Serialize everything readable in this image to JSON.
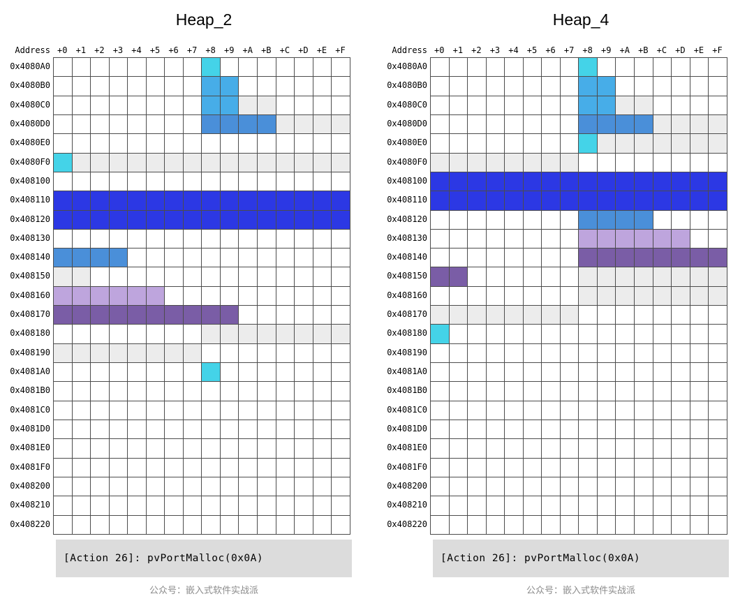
{
  "labels": {
    "address_header": "Address"
  },
  "footer_text": "公众号：嵌入式软件实战派",
  "colors": {
    "free": "#ffffff",
    "meta": "#ececec",
    "cyan": "#44d3e8",
    "sky": "#47ade8",
    "steel": "#4a8fd9",
    "royal": "#2c38e4",
    "lavender": "#bea5dd",
    "purple": "#7a5da6",
    "grid_line": "#4c4c4c",
    "action_bar_bg": "#dcdcdc",
    "watermark_text": "#8c8c8c"
  },
  "chart_data": [
    {
      "type": "heatmap",
      "title": "Heap_2",
      "annotation": "[Action 26]: pvPortMalloc(0x0A)",
      "x_labels": [
        "+0",
        "+1",
        "+2",
        "+3",
        "+4",
        "+5",
        "+6",
        "+7",
        "+8",
        "+9",
        "+A",
        "+B",
        "+C",
        "+D",
        "+E",
        "+F"
      ],
      "y_labels": [
        "0x4080A0",
        "0x4080B0",
        "0x4080C0",
        "0x4080D0",
        "0x4080E0",
        "0x4080F0",
        "0x408100",
        "0x408110",
        "0x408120",
        "0x408130",
        "0x408140",
        "0x408150",
        "0x408160",
        "0x408170",
        "0x408180",
        "0x408190",
        "0x4081A0",
        "0x4081B0",
        "0x4081C0",
        "0x4081D0",
        "0x4081E0",
        "0x4081F0",
        "0x408200",
        "0x408210",
        "0x408220"
      ],
      "cells": {
        "0x4080A0": [
          [
            8,
            8,
            "cyan"
          ]
        ],
        "0x4080B0": [
          [
            8,
            9,
            "sky"
          ]
        ],
        "0x4080C0": [
          [
            8,
            9,
            "sky"
          ],
          [
            10,
            11,
            "meta"
          ]
        ],
        "0x4080D0": [
          [
            8,
            11,
            "steel"
          ],
          [
            12,
            15,
            "meta"
          ]
        ],
        "0x4080F0": [
          [
            0,
            0,
            "cyan"
          ],
          [
            1,
            15,
            "meta"
          ]
        ],
        "0x408110": [
          [
            0,
            15,
            "royal"
          ]
        ],
        "0x408120": [
          [
            0,
            15,
            "royal"
          ]
        ],
        "0x408140": [
          [
            0,
            3,
            "steel"
          ]
        ],
        "0x408150": [
          [
            0,
            1,
            "meta"
          ]
        ],
        "0x408160": [
          [
            0,
            5,
            "lavender"
          ]
        ],
        "0x408170": [
          [
            0,
            9,
            "purple"
          ]
        ],
        "0x408180": [
          [
            8,
            15,
            "meta"
          ]
        ],
        "0x408190": [
          [
            0,
            7,
            "meta"
          ]
        ],
        "0x4081A0": [
          [
            8,
            8,
            "cyan"
          ]
        ]
      }
    },
    {
      "type": "heatmap",
      "title": "Heap_4",
      "annotation": "[Action 26]: pvPortMalloc(0x0A)",
      "x_labels": [
        "+0",
        "+1",
        "+2",
        "+3",
        "+4",
        "+5",
        "+6",
        "+7",
        "+8",
        "+9",
        "+A",
        "+B",
        "+C",
        "+D",
        "+E",
        "+F"
      ],
      "y_labels": [
        "0x4080A0",
        "0x4080B0",
        "0x4080C0",
        "0x4080D0",
        "0x4080E0",
        "0x4080F0",
        "0x408100",
        "0x408110",
        "0x408120",
        "0x408130",
        "0x408140",
        "0x408150",
        "0x408160",
        "0x408170",
        "0x408180",
        "0x408190",
        "0x4081A0",
        "0x4081B0",
        "0x4081C0",
        "0x4081D0",
        "0x4081E0",
        "0x4081F0",
        "0x408200",
        "0x408210",
        "0x408220"
      ],
      "cells": {
        "0x4080A0": [
          [
            8,
            8,
            "cyan"
          ]
        ],
        "0x4080B0": [
          [
            8,
            9,
            "sky"
          ]
        ],
        "0x4080C0": [
          [
            8,
            9,
            "sky"
          ],
          [
            10,
            11,
            "meta"
          ]
        ],
        "0x4080D0": [
          [
            8,
            11,
            "steel"
          ],
          [
            12,
            15,
            "meta"
          ]
        ],
        "0x4080E0": [
          [
            8,
            8,
            "cyan"
          ],
          [
            9,
            15,
            "meta"
          ]
        ],
        "0x4080F0": [
          [
            0,
            7,
            "meta"
          ]
        ],
        "0x408100": [
          [
            0,
            15,
            "royal"
          ]
        ],
        "0x408110": [
          [
            0,
            15,
            "royal"
          ]
        ],
        "0x408120": [
          [
            8,
            11,
            "steel"
          ]
        ],
        "0x408130": [
          [
            8,
            13,
            "lavender"
          ]
        ],
        "0x408140": [
          [
            8,
            15,
            "purple"
          ]
        ],
        "0x408150": [
          [
            0,
            1,
            "purple"
          ],
          [
            8,
            15,
            "meta"
          ]
        ],
        "0x408160": [
          [
            8,
            15,
            "meta"
          ]
        ],
        "0x408170": [
          [
            0,
            7,
            "meta"
          ]
        ],
        "0x408180": [
          [
            0,
            0,
            "cyan"
          ]
        ]
      }
    }
  ]
}
